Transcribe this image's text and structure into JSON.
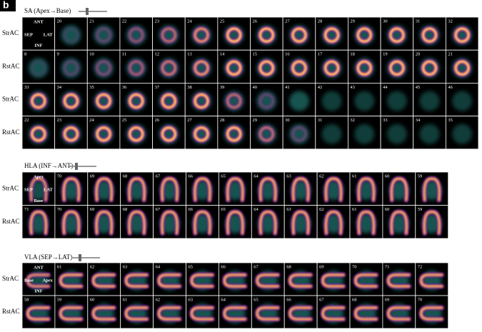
{
  "figure_label": "b",
  "sections": [
    {
      "title": "SA (Apex→Base)",
      "rows": [
        {
          "label": "StrAC",
          "cells": [
            {
              "orientation": [
                "ANT",
                "SEP",
                "LAT",
                "INF"
              ]
            },
            20,
            21,
            22,
            23,
            24,
            25,
            26,
            27,
            28,
            29,
            30,
            31,
            32
          ]
        },
        {
          "label": "RstAC",
          "cells": [
            8,
            9,
            10,
            11,
            12,
            13,
            14,
            15,
            16,
            17,
            18,
            19,
            20,
            21
          ]
        },
        {
          "label": "StrAC",
          "cells": [
            33,
            34,
            35,
            36,
            37,
            38,
            39,
            40,
            41,
            42,
            43,
            44,
            45,
            46
          ]
        },
        {
          "label": "RstAC",
          "cells": [
            22,
            23,
            24,
            25,
            26,
            27,
            28,
            29,
            30,
            31,
            32,
            33,
            34,
            35
          ]
        }
      ]
    },
    {
      "title": "HLA (INF→ANT)",
      "rows": [
        {
          "label": "StrAC",
          "cells": [
            {
              "orientation": [
                "Apex",
                "SEP",
                "LAT",
                "Base"
              ]
            },
            70,
            69,
            68,
            67,
            66,
            65,
            64,
            63,
            62,
            61,
            60,
            59
          ]
        },
        {
          "label": "RstAC",
          "cells": [
            71,
            70,
            69,
            68,
            67,
            66,
            65,
            64,
            63,
            62,
            61,
            60,
            59
          ]
        }
      ]
    },
    {
      "title": "VLA (SEP→LAT)",
      "rows": [
        {
          "label": "StrAC",
          "cells": [
            {
              "orientation": [
                "ANT",
                "Base",
                "Apex",
                "INF"
              ]
            },
            61,
            62,
            63,
            64,
            65,
            66,
            67,
            68,
            69,
            70,
            71,
            72
          ]
        },
        {
          "label": "RstAC",
          "cells": [
            58,
            59,
            60,
            61,
            62,
            63,
            64,
            65,
            66,
            67,
            68,
            69,
            70
          ]
        }
      ]
    }
  ]
}
